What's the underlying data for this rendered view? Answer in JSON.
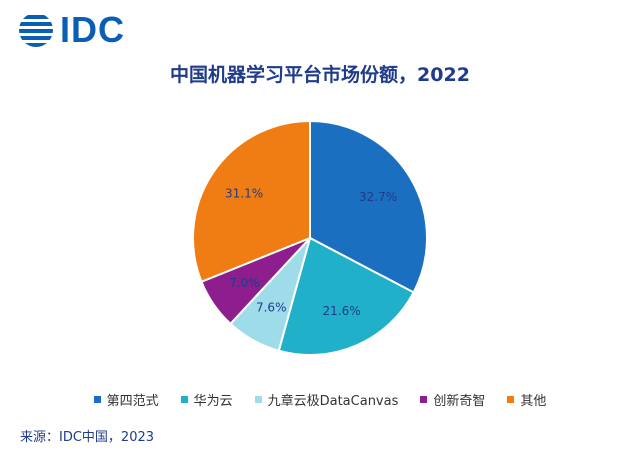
{
  "logo": {
    "text": "IDC"
  },
  "chart_data": {
    "type": "pie",
    "title": "中国机器学习平台市场份额，2022",
    "slices": [
      {
        "label": "第四范式",
        "value": 32.7,
        "display": "32.7%",
        "color": "#1b6fc0"
      },
      {
        "label": "华为云",
        "value": 21.6,
        "display": "21.6%",
        "color": "#20b0c9"
      },
      {
        "label": "九章云极DataCanvas",
        "value": 7.6,
        "display": "7.6%",
        "color": "#9fdcea"
      },
      {
        "label": "创新奇智",
        "value": 7.0,
        "display": "7.0%",
        "color": "#8e1e8e"
      },
      {
        "label": "其他",
        "value": 31.1,
        "display": "31.1%",
        "color": "#f07d13"
      }
    ],
    "legend_position": "bottom"
  },
  "source": "来源：IDC中国，2023"
}
